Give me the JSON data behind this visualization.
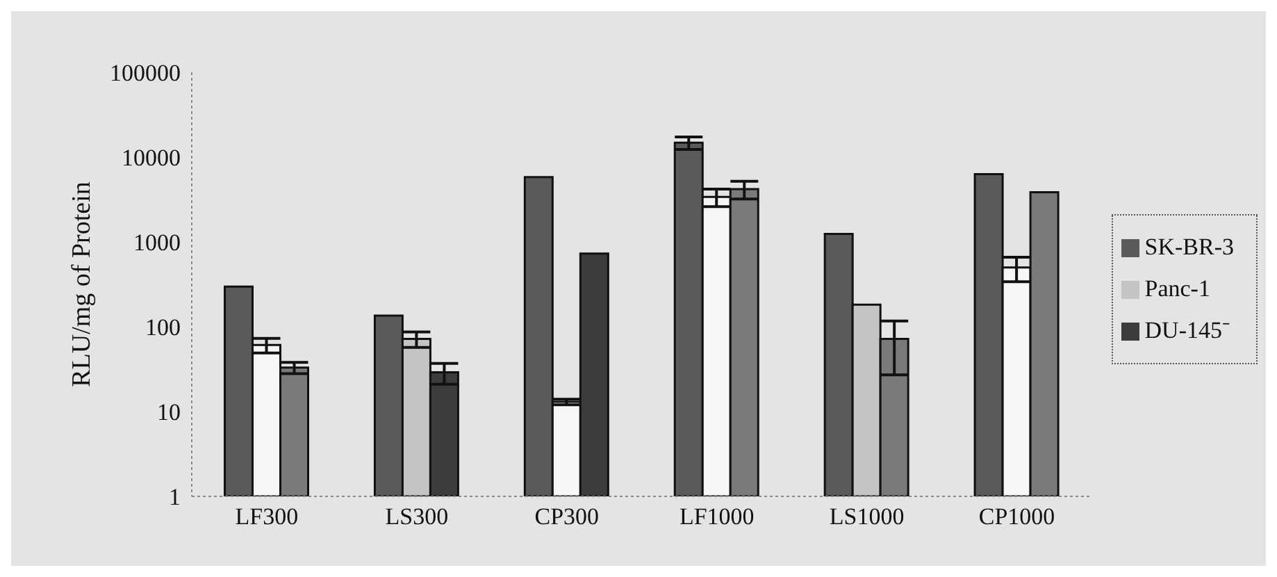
{
  "chart_data": {
    "type": "bar",
    "ylabel": "RLU/mg of Protein",
    "categories": [
      "LF300",
      "LS300",
      "CP300",
      "LF1000",
      "LS1000",
      "CP1000"
    ],
    "log": "y",
    "ylim": [
      1,
      100000
    ],
    "yticks": [
      1,
      10,
      100,
      1000,
      10000,
      100000
    ],
    "grid": false,
    "legend": "right",
    "series": [
      {
        "name": "SK-BR-3",
        "color": "#5a5a5a",
        "values": [
          297,
          135,
          5800,
          14800,
          1240,
          6300
        ],
        "errors": [
          null,
          null,
          null,
          2500,
          null,
          null
        ]
      },
      {
        "name": "Panc-1",
        "color": "#c4c4c4",
        "colors": [
          "#f6f6f6",
          "#c4c4c4",
          "#f6f6f6",
          "#f6f6f6",
          "#c4c4c4",
          "#f6f6f6"
        ],
        "values": [
          61,
          72,
          13,
          3400,
          182,
          500
        ],
        "errors": [
          12,
          15,
          1,
          800,
          null,
          160
        ]
      },
      {
        "name": "DU-145⁻",
        "color": "#3c3c3c",
        "colors": [
          "#7a7a7a",
          "#3c3c3c",
          "#3c3c3c",
          "#7a7a7a",
          "#7a7a7a",
          "#7a7a7a"
        ],
        "values": [
          33,
          29,
          730,
          4200,
          72,
          3850
        ],
        "errors": [
          5,
          8,
          null,
          1000,
          45,
          null
        ]
      }
    ]
  }
}
